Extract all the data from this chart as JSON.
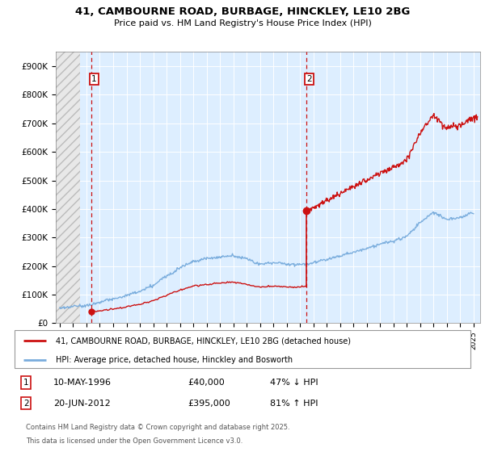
{
  "title": "41, CAMBOURNE ROAD, BURBAGE, HINCKLEY, LE10 2BG",
  "subtitle": "Price paid vs. HM Land Registry's House Price Index (HPI)",
  "xlim_left": 1993.7,
  "xlim_right": 2025.5,
  "ylim_bottom": 0,
  "ylim_top": 950000,
  "yticks": [
    0,
    100000,
    200000,
    300000,
    400000,
    500000,
    600000,
    700000,
    800000,
    900000
  ],
  "ytick_labels": [
    "£0",
    "£100K",
    "£200K",
    "£300K",
    "£400K",
    "£500K",
    "£600K",
    "£700K",
    "£800K",
    "£900K"
  ],
  "hpi_color": "#7aaddd",
  "price_color": "#cc1111",
  "transaction1": {
    "year": 1996.36,
    "price": 40000,
    "label": "1",
    "date": "10-MAY-1996",
    "amount": "£40,000",
    "pct": "47% ↓ HPI"
  },
  "transaction2": {
    "year": 2012.47,
    "price": 395000,
    "label": "2",
    "date": "20-JUN-2012",
    "amount": "£395,000",
    "pct": "81% ↑ HPI"
  },
  "hatch_end_year": 1995.5,
  "legend_line1": "41, CAMBOURNE ROAD, BURBAGE, HINCKLEY, LE10 2BG (detached house)",
  "legend_line2": "HPI: Average price, detached house, Hinckley and Bosworth",
  "footer": "Contains HM Land Registry data © Crown copyright and database right 2025.\nThis data is licensed under the Open Government Licence v3.0.",
  "background_color": "#ddeeff",
  "grid_color": "white"
}
